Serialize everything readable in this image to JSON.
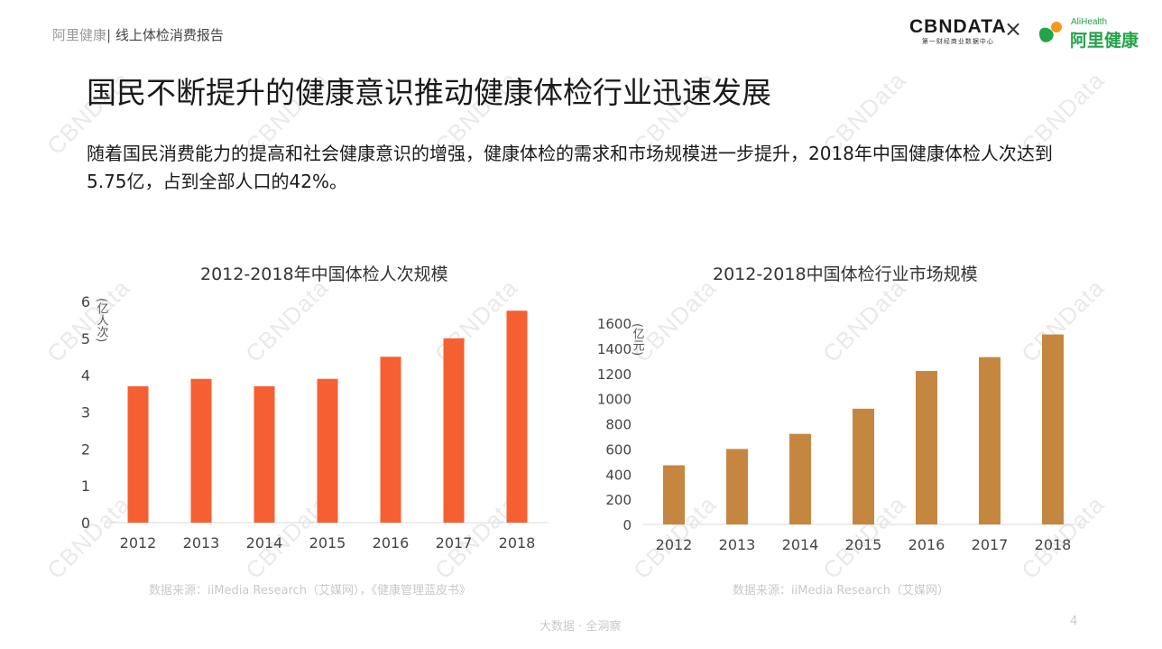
{
  "header": {
    "brand": "阿里健康",
    "report": "线上体检消费报告"
  },
  "logos": {
    "cbndata_main": "CBNDATA",
    "cbndata_sub": "第一财经商业数据中心",
    "times": "×",
    "alihealth_en": "AliHealth",
    "alihealth_cn": "阿里健康"
  },
  "title": "国民不断提升的健康意识推动健康体检行业迅速发展",
  "body": "随着国民消费能力的提高和社会健康意识的增强，健康体检的需求和市场规模进一步提升，2018年中国健康体检人次达到5.75亿，占到全部人口的42%。",
  "watermark": "CBNData",
  "colors": {
    "chart1_bar": "#f55f31",
    "chart2_bar": "#c58740",
    "alihealth_green": "#23a34a",
    "alihealth_orange": "#f39a1e"
  },
  "chart_data": [
    {
      "type": "bar",
      "title": "2012-2018年中国体检人次规模",
      "ylabel": "(亿人次)",
      "categories": [
        "2012",
        "2013",
        "2014",
        "2015",
        "2016",
        "2017",
        "2018"
      ],
      "values": [
        3.7,
        3.9,
        3.7,
        3.9,
        4.5,
        5.0,
        5.75
      ],
      "ylim": [
        0,
        6
      ],
      "yticks": [
        "0",
        "1",
        "2",
        "3",
        "4",
        "5",
        "6"
      ],
      "grid": false,
      "source": "数据来源：iiMedia Research（艾媒网），《健康管理蓝皮书》"
    },
    {
      "type": "bar",
      "title": "2012-2018中国体检行业市场规模",
      "ylabel": "(亿元)",
      "categories": [
        "2012",
        "2013",
        "2014",
        "2015",
        "2016",
        "2017",
        "2018"
      ],
      "values": [
        470,
        600,
        720,
        920,
        1220,
        1330,
        1510
      ],
      "ylim": [
        0,
        1600
      ],
      "yticks": [
        "0",
        "200",
        "400",
        "600",
        "800",
        "1000",
        "1200",
        "1400",
        "1600"
      ],
      "grid": false,
      "source": "数据来源：iiMedia Research（艾媒网）"
    }
  ],
  "footer": {
    "tagline": "大数据 · 全洞察",
    "page": "4"
  }
}
